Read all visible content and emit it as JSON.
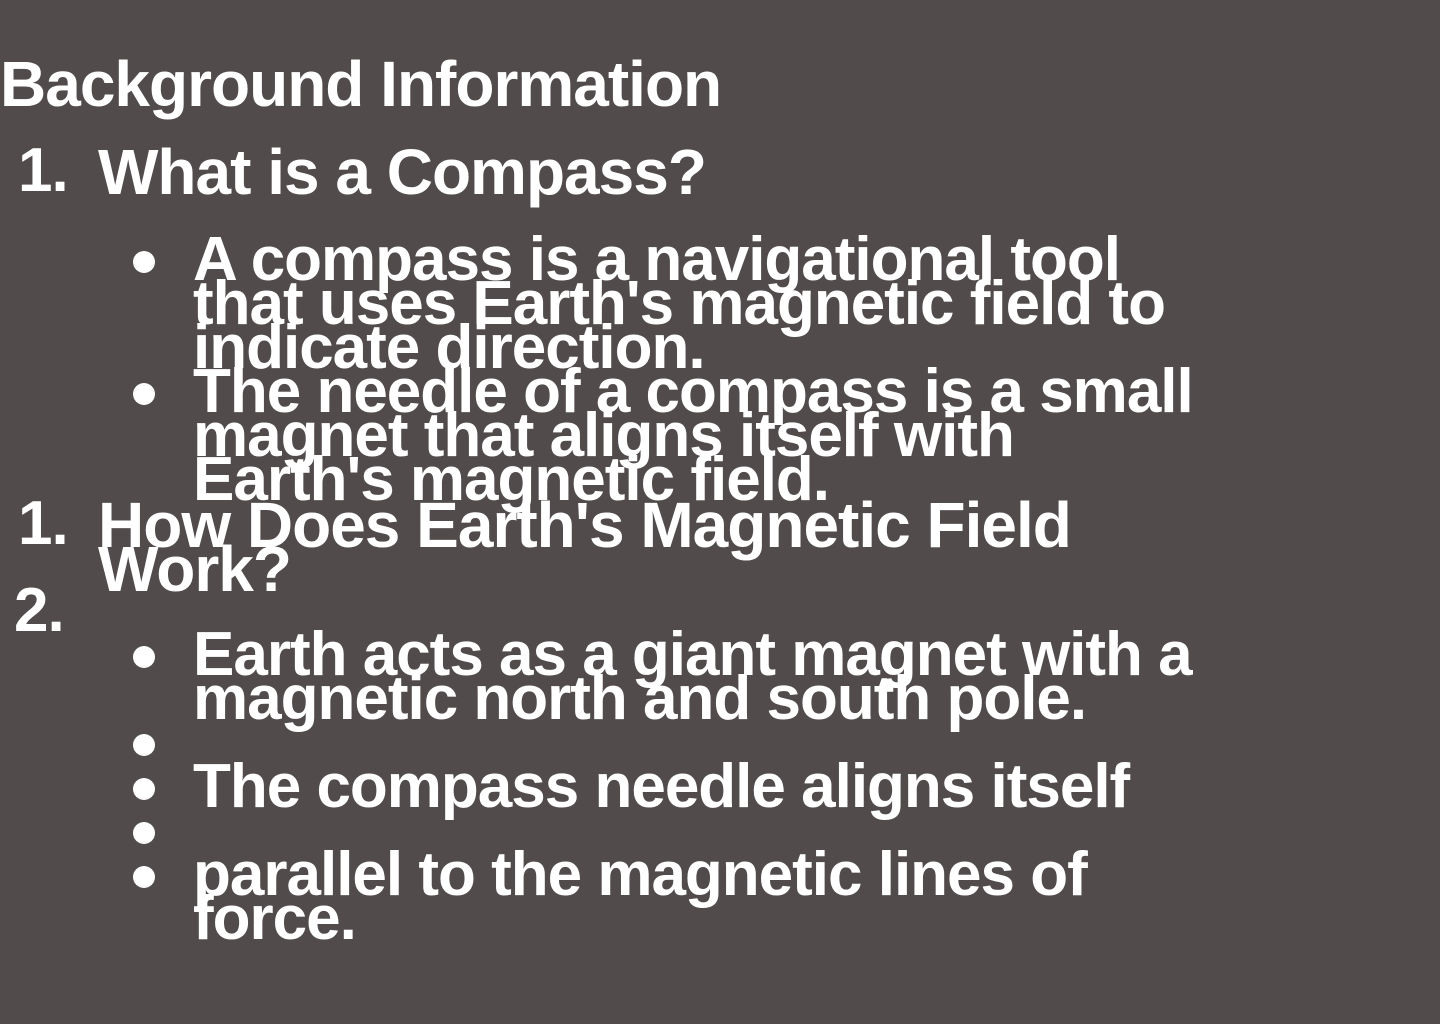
{
  "heading": "Background Information",
  "sections": [
    {
      "number": "1.",
      "title": "What is a Compass?",
      "bullets": [
        {
          "lines": [
            "A compass is a navigational tool",
            "that uses Earth's magnetic field to",
            "indicate direction."
          ]
        },
        {
          "lines": [
            "The needle of a compass is a small",
            "magnet that aligns itself with",
            "Earth's magnetic field."
          ]
        }
      ]
    },
    {
      "number": "1.",
      "number_extra": "2.",
      "title_lines": [
        "How Does Earth's Magnetic Field",
        "Work?"
      ],
      "bullets": [
        {
          "lines": [
            "Earth acts as a giant magnet with a",
            "magnetic north and south pole."
          ]
        },
        {
          "lines": [
            "The compass needle aligns itself"
          ]
        },
        {
          "lines": [
            "parallel to the magnetic lines of",
            "force."
          ]
        }
      ]
    }
  ]
}
